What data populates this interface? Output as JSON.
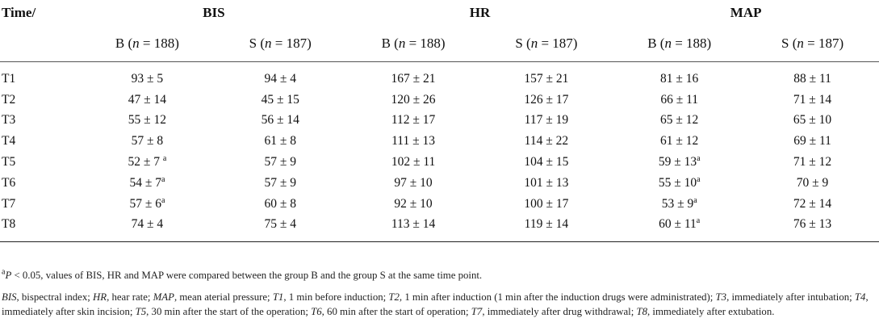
{
  "table": {
    "corner_label": "Time/",
    "groups": [
      "BIS",
      "HR",
      "MAP"
    ],
    "subheaders": [
      {
        "group": "B (",
        "n_label": "n",
        "rest": " = 188)"
      },
      {
        "group": "S (",
        "n_label": "n",
        "rest": " = 187)"
      },
      {
        "group": "B (",
        "n_label": "n",
        "rest": " = 188)"
      },
      {
        "group": "S (",
        "n_label": "n",
        "rest": " = 187)"
      },
      {
        "group": "B (",
        "n_label": "n",
        "rest": " = 188)"
      },
      {
        "group": "S (",
        "n_label": "n",
        "rest": " = 187)"
      }
    ],
    "rows": [
      {
        "time": "T1",
        "cells": [
          {
            "v": "93 ± 5",
            "s": ""
          },
          {
            "v": "94 ± 4",
            "s": ""
          },
          {
            "v": "167 ± 21",
            "s": ""
          },
          {
            "v": "157 ± 21",
            "s": ""
          },
          {
            "v": "81 ± 16",
            "s": ""
          },
          {
            "v": "88 ± 11",
            "s": ""
          }
        ]
      },
      {
        "time": "T2",
        "cells": [
          {
            "v": "47 ± 14",
            "s": ""
          },
          {
            "v": "45 ± 15",
            "s": ""
          },
          {
            "v": "120 ± 26",
            "s": ""
          },
          {
            "v": "126 ± 17",
            "s": ""
          },
          {
            "v": "66 ± 11",
            "s": ""
          },
          {
            "v": "71 ± 14",
            "s": ""
          }
        ]
      },
      {
        "time": "T3",
        "cells": [
          {
            "v": "55 ± 12",
            "s": ""
          },
          {
            "v": "56 ± 14",
            "s": ""
          },
          {
            "v": "112 ± 17",
            "s": ""
          },
          {
            "v": "117 ± 19",
            "s": ""
          },
          {
            "v": "65 ± 12",
            "s": ""
          },
          {
            "v": "65 ± 10",
            "s": ""
          }
        ]
      },
      {
        "time": "T4",
        "cells": [
          {
            "v": "57 ± 8",
            "s": ""
          },
          {
            "v": "61 ± 8",
            "s": ""
          },
          {
            "v": "111 ± 13",
            "s": ""
          },
          {
            "v": "114 ± 22",
            "s": ""
          },
          {
            "v": "61 ± 12",
            "s": ""
          },
          {
            "v": "69 ± 11",
            "s": ""
          }
        ]
      },
      {
        "time": "T5",
        "cells": [
          {
            "v": "52 ± 7 ",
            "s": "a"
          },
          {
            "v": "57 ± 9",
            "s": ""
          },
          {
            "v": "102 ± 11",
            "s": ""
          },
          {
            "v": "104 ± 15",
            "s": ""
          },
          {
            "v": "59 ± 13",
            "s": "a"
          },
          {
            "v": "71 ± 12",
            "s": ""
          }
        ]
      },
      {
        "time": "T6",
        "cells": [
          {
            "v": "54 ± 7",
            "s": "a"
          },
          {
            "v": "57 ± 9",
            "s": ""
          },
          {
            "v": "97 ± 10",
            "s": ""
          },
          {
            "v": "101 ± 13",
            "s": ""
          },
          {
            "v": "55 ± 10",
            "s": "a"
          },
          {
            "v": "70 ± 9",
            "s": ""
          }
        ]
      },
      {
        "time": "T7",
        "cells": [
          {
            "v": "57 ± 6",
            "s": "a"
          },
          {
            "v": "60 ± 8",
            "s": ""
          },
          {
            "v": "92 ± 10",
            "s": ""
          },
          {
            "v": "100 ± 17",
            "s": ""
          },
          {
            "v": "53 ± 9",
            "s": "a"
          },
          {
            "v": "72 ± 14",
            "s": ""
          }
        ]
      },
      {
        "time": "T8",
        "cells": [
          {
            "v": "74 ± 4",
            "s": ""
          },
          {
            "v": "75 ± 4",
            "s": ""
          },
          {
            "v": "113 ± 14",
            "s": ""
          },
          {
            "v": "119 ± 14",
            "s": ""
          },
          {
            "v": "60 ± 11",
            "s": "a"
          },
          {
            "v": "76 ± 13",
            "s": ""
          }
        ]
      }
    ]
  },
  "footnotes": {
    "a_marker": "a",
    "a_p": "P",
    "a_text": " < 0.05, values of BIS, HR and MAP were compared between the group B and the group S at the same time point.",
    "abbrev": [
      {
        "term": "BIS",
        "def": ", bispectral index; "
      },
      {
        "term": "HR",
        "def": ", hear rate; "
      },
      {
        "term": "MAP",
        "def": ", mean aterial pressure; "
      },
      {
        "term": "T1",
        "def": ", 1 min before induction; "
      },
      {
        "term": "T2",
        "def": ", 1 min after induction (1 min after the induction drugs were administrated); "
      },
      {
        "term": "T3",
        "def": ", immediately after intubation; "
      },
      {
        "term": "T4",
        "def": ", immediately after skin incision; "
      },
      {
        "term": "T5",
        "def": ", 30 min after the start of the operation; "
      },
      {
        "term": "T6",
        "def": ", 60 min after the start of operation; "
      },
      {
        "term": "T7",
        "def": ", immediately after drug withdrawal; "
      },
      {
        "term": "T8",
        "def": ", immediately after extubation."
      }
    ]
  }
}
